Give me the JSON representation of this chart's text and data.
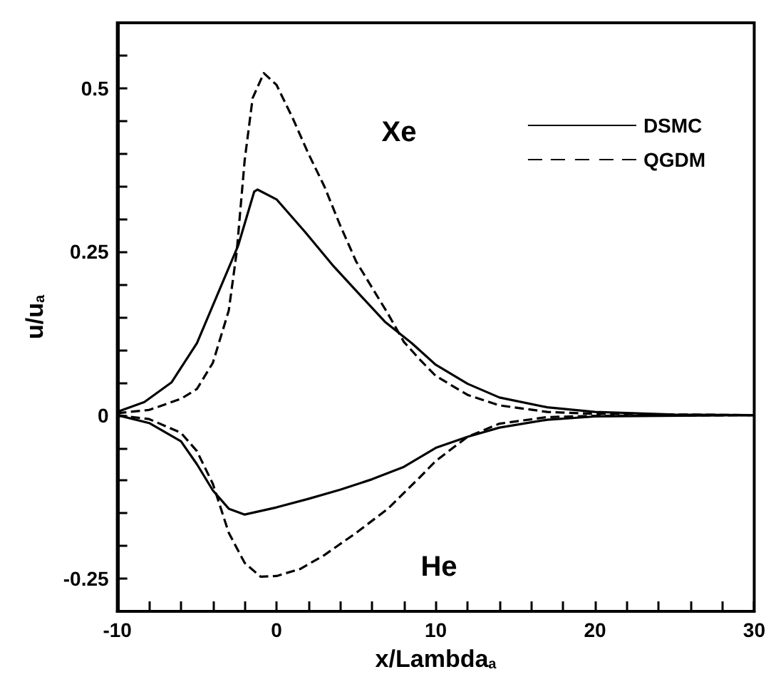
{
  "chart_data": {
    "type": "line",
    "xlabel": "x/Lambda$_{a}$",
    "ylabel": "u/u$_{a}$",
    "xlim": [
      -10,
      30
    ],
    "ylim": [
      -0.3,
      0.6
    ],
    "xticks": [
      -10,
      {
        "value": -8,
        "label": null
      },
      {
        "value": -6,
        "label": null
      },
      {
        "value": -4,
        "label": null
      },
      {
        "value": -2,
        "label": null
      },
      0,
      {
        "value": 2,
        "label": null
      },
      {
        "value": 4,
        "label": null
      },
      {
        "value": 6,
        "label": null
      },
      {
        "value": 8,
        "label": null
      },
      10,
      {
        "value": 12,
        "label": null
      },
      {
        "value": 14,
        "label": null
      },
      {
        "value": 16,
        "label": null
      },
      {
        "value": 18,
        "label": null
      },
      20,
      {
        "value": 22,
        "label": null
      },
      {
        "value": 24,
        "label": null
      },
      {
        "value": 26,
        "label": null
      },
      {
        "value": 28,
        "label": null
      },
      30
    ],
    "yticks": [
      {
        "value": -0.3,
        "label": null
      },
      -0.25,
      {
        "value": -0.2,
        "label": null
      },
      {
        "value": -0.15,
        "label": null
      },
      {
        "value": -0.1,
        "label": null
      },
      {
        "value": -0.05,
        "label": null
      },
      0,
      {
        "value": 0.05,
        "label": null
      },
      {
        "value": 0.1,
        "label": null
      },
      {
        "value": 0.15,
        "label": null
      },
      {
        "value": 0.2,
        "label": null
      },
      0.25,
      {
        "value": 0.3,
        "label": null
      },
      {
        "value": 0.35,
        "label": null
      },
      {
        "value": 0.4,
        "label": null
      },
      {
        "value": 0.45,
        "label": null
      },
      0.5,
      {
        "value": 0.55,
        "label": null
      }
    ],
    "grid": false,
    "legend": "top right",
    "marker": "none",
    "annotations": [
      "Xe",
      "He"
    ],
    "series": [
      {
        "name": "DSMC",
        "color": "#000000",
        "line_style": "solid",
        "x": [
          -10,
          -8.3,
          -6.6,
          -5,
          -3.7,
          -2.4,
          -1.4,
          -1.2,
          0,
          1.8,
          3.5,
          5.2,
          6.8,
          8.5,
          10,
          12,
          14,
          17,
          20,
          25,
          30
        ],
        "values": [
          0.005,
          0.02,
          0.05,
          0.11,
          0.185,
          0.26,
          0.342,
          0.345,
          0.33,
          0.28,
          0.23,
          0.185,
          0.143,
          0.11,
          0.077,
          0.048,
          0.027,
          0.012,
          0.005,
          0.001,
          0
        ]
      },
      {
        "name": "QGDM",
        "color": "#000000",
        "line_style": "dashed",
        "x": [
          -10,
          -8,
          -6,
          -5,
          -4,
          -3,
          -2.5,
          -2,
          -1.5,
          -0.8,
          0,
          1,
          2,
          3,
          4,
          5,
          6,
          7,
          8,
          9,
          10,
          12,
          14,
          17,
          20,
          30
        ],
        "values": [
          0.003,
          0.008,
          0.025,
          0.04,
          0.08,
          0.16,
          0.25,
          0.39,
          0.485,
          0.523,
          0.505,
          0.455,
          0.4,
          0.35,
          0.29,
          0.235,
          0.195,
          0.155,
          0.112,
          0.085,
          0.06,
          0.031,
          0.015,
          0.005,
          0.002,
          0
        ]
      },
      {
        "color": "#000000",
        "line_style": "solid",
        "x": [
          -10,
          -8,
          -6,
          -5,
          -4,
          -3,
          -2,
          0,
          2,
          4,
          6,
          8,
          10,
          12,
          14,
          17,
          20,
          30
        ],
        "values": [
          0,
          -0.012,
          -0.04,
          -0.075,
          -0.115,
          -0.143,
          -0.152,
          -0.141,
          -0.128,
          -0.114,
          -0.098,
          -0.079,
          -0.05,
          -0.033,
          -0.019,
          -0.007,
          -0.002,
          0
        ]
      },
      {
        "color": "#000000",
        "line_style": "dashed",
        "x": [
          -10,
          -8,
          -6,
          -5,
          -4,
          -3,
          -2,
          -1,
          0,
          1.5,
          3,
          5,
          7,
          9,
          10,
          12,
          14,
          17,
          20,
          30
        ],
        "values": [
          0,
          -0.006,
          -0.027,
          -0.055,
          -0.105,
          -0.18,
          -0.226,
          -0.247,
          -0.246,
          -0.235,
          -0.214,
          -0.18,
          -0.143,
          -0.095,
          -0.07,
          -0.033,
          -0.013,
          -0.003,
          -0.001,
          0
        ]
      }
    ]
  }
}
